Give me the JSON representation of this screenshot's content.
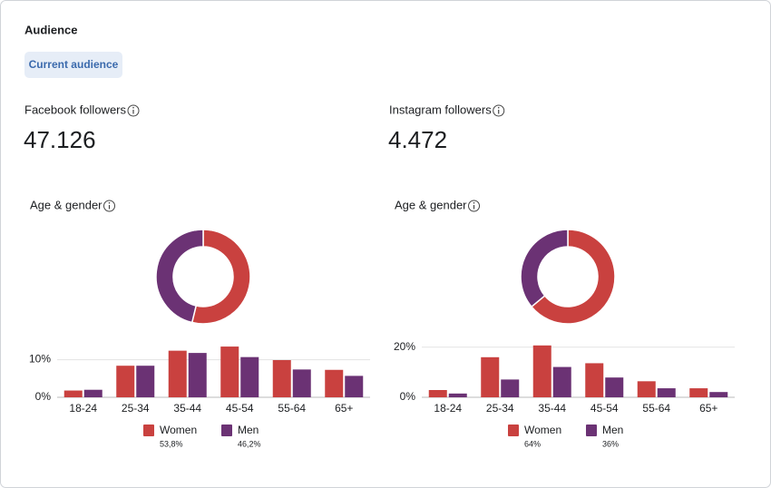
{
  "header": {
    "title": "Audience",
    "tab": "Current audience"
  },
  "panels": [
    {
      "label": "Facebook followers",
      "count": "47.126"
    },
    {
      "label": "Instagram followers",
      "count": "4.472"
    }
  ],
  "chart_data": [
    {
      "type": "pie",
      "title": "Age & gender",
      "values": [
        53.8,
        46.2
      ],
      "value_labels": [
        "53,8%",
        "46,2%"
      ],
      "colors": [
        "#c9413f",
        "#6b3274"
      ]
    },
    {
      "type": "bar",
      "categories": [
        "18-24",
        "25-34",
        "35-44",
        "45-54",
        "55-64",
        "65+"
      ],
      "series": [
        {
          "name": "Women",
          "color": "#c9413f",
          "values": [
            1.8,
            8.4,
            12.4,
            13.5,
            9.9,
            7.3
          ]
        },
        {
          "name": "Men",
          "color": "#6b3274",
          "values": [
            2.0,
            8.4,
            11.8,
            10.7,
            7.4,
            5.7
          ]
        }
      ],
      "ylim": [
        0,
        14
      ],
      "yticks": [
        {
          "value": 0,
          "label": "0%"
        },
        {
          "value": 10,
          "label": "10%"
        }
      ],
      "grid": true
    },
    {
      "type": "pie",
      "title": "Age & gender",
      "values": [
        64,
        36
      ],
      "value_labels": [
        "64%",
        "36%"
      ],
      "colors": [
        "#c9413f",
        "#6b3274"
      ]
    },
    {
      "type": "bar",
      "categories": [
        "18-24",
        "25-34",
        "35-44",
        "45-54",
        "55-64",
        "65+"
      ],
      "series": [
        {
          "name": "Women",
          "color": "#c9413f",
          "values": [
            2.9,
            16,
            20.7,
            13.6,
            6.4,
            3.6
          ]
        },
        {
          "name": "Men",
          "color": "#6b3274",
          "values": [
            1.5,
            7.1,
            12.1,
            7.9,
            3.6,
            2.1
          ]
        }
      ],
      "ylim": [
        0,
        21
      ],
      "yticks": [
        {
          "value": 0,
          "label": "0%"
        },
        {
          "value": 20,
          "label": "20%"
        }
      ],
      "grid": true
    }
  ]
}
